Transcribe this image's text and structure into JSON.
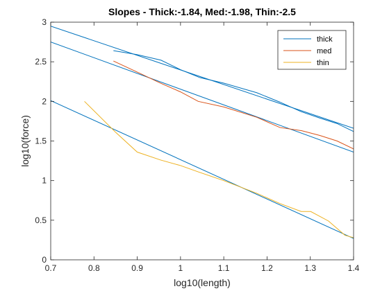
{
  "chart_data": {
    "type": "line",
    "title": "Slopes - Thick:-1.84, Med:-1.98, Thin:-2.5",
    "xlabel": "log10(length)",
    "ylabel": "log10(force)",
    "xlim": [
      0.7,
      1.4
    ],
    "ylim": [
      0,
      3
    ],
    "xticks": [
      "0.7",
      "0.8",
      "0.9",
      "1",
      "1.1",
      "1.2",
      "1.3",
      "1.4"
    ],
    "yticks": [
      "0",
      "0.5",
      "1",
      "1.5",
      "2",
      "2.5",
      "3"
    ],
    "grid": false,
    "legend_position": "top-right",
    "series": [
      {
        "name": "thick",
        "color": "#0072BD",
        "x": [
          0.845,
          0.9,
          0.955,
          1.0,
          1.045,
          1.1,
          1.176,
          1.23,
          1.279,
          1.322,
          1.362,
          1.4
        ],
        "y": [
          2.64,
          2.59,
          2.52,
          2.4,
          2.3,
          2.23,
          2.11,
          1.99,
          1.87,
          1.79,
          1.72,
          1.62
        ]
      },
      {
        "name": "med",
        "color": "#D95319",
        "x": [
          0.845,
          0.9,
          0.954,
          1.0,
          1.041,
          1.1,
          1.176,
          1.23,
          1.28,
          1.322,
          1.362,
          1.4
        ],
        "y": [
          2.51,
          2.37,
          2.23,
          2.12,
          2.0,
          1.93,
          1.8,
          1.67,
          1.63,
          1.57,
          1.5,
          1.4
        ]
      },
      {
        "name": "thin",
        "color": "#EDB120",
        "x": [
          0.778,
          0.85,
          0.9,
          0.954,
          1.0,
          1.041,
          1.1,
          1.176,
          1.23,
          1.279,
          1.301,
          1.342,
          1.38,
          1.4
        ],
        "y": [
          2.0,
          1.61,
          1.36,
          1.26,
          1.19,
          1.11,
          1.0,
          0.84,
          0.71,
          0.61,
          0.61,
          0.49,
          0.31,
          0.28
        ]
      }
    ],
    "fit_lines": [
      {
        "color": "#0072BD",
        "x": [
          0.7,
          1.4
        ],
        "y": [
          2.95,
          1.66
        ]
      },
      {
        "color": "#0072BD",
        "x": [
          0.7,
          1.4
        ],
        "y": [
          2.75,
          1.36
        ]
      },
      {
        "color": "#0072BD",
        "x": [
          0.7,
          1.4
        ],
        "y": [
          2.01,
          0.27
        ]
      }
    ]
  }
}
